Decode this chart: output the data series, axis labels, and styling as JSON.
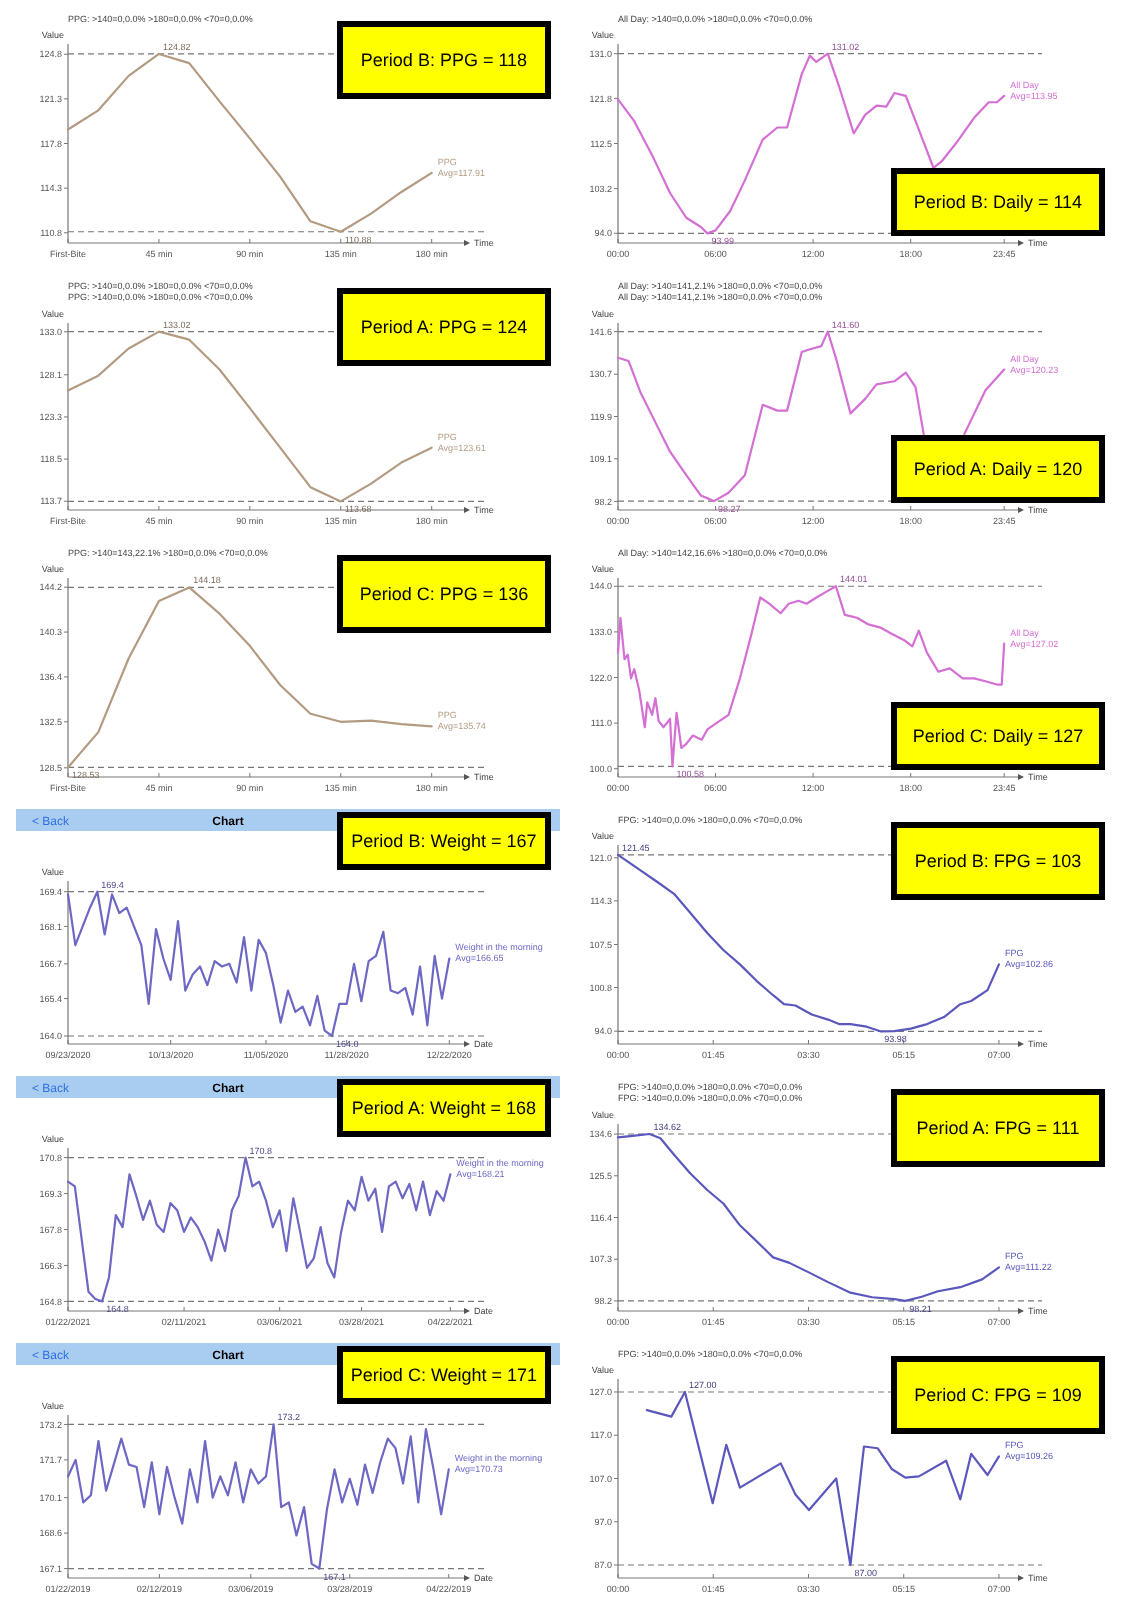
{
  "chart_data": [
    {
      "type": "line",
      "title": "PPG: >140=0,0.0%  >180=0,0.0%  <70=0,0.0%",
      "xlabel": "Time",
      "ylabel": "Value",
      "legend": "right",
      "x": [
        0,
        15,
        30,
        45,
        60,
        75,
        90,
        105,
        120,
        135,
        150,
        165,
        180
      ],
      "xlim": [
        0,
        196
      ],
      "xticks": [
        {
          "value": 0,
          "label": "First-Bite"
        },
        {
          "value": 45,
          "label": "45 min"
        },
        {
          "value": 90,
          "label": "90 min"
        },
        {
          "value": 135,
          "label": "135 min"
        },
        {
          "value": 180,
          "label": "180 min"
        }
      ],
      "ylim": [
        110.0,
        125.6
      ],
      "yticks": [
        110.8,
        114.3,
        117.8,
        121.3,
        124.8
      ],
      "series": [
        {
          "name": "PPG",
          "color": "#b39b82",
          "values": [
            118.9,
            120.4,
            123.1,
            124.82,
            124.1,
            121.1,
            118.2,
            115.2,
            111.7,
            110.88,
            112.3,
            114.0,
            115.5
          ]
        }
      ],
      "ref_lines": [
        {
          "axis": "y",
          "value": 124.82,
          "line_style": "dashed",
          "color": "#777777"
        },
        {
          "axis": "y",
          "value": 110.88,
          "line_style": "dashed",
          "color": "#777777"
        }
      ],
      "annotations": [
        "Period B:  PPG = 118",
        "Avg=117.91",
        {
          "text": "124.82",
          "x": 45,
          "y": 124.82
        },
        {
          "text": "110.88",
          "x": 135,
          "y": 110.88
        }
      ]
    },
    {
      "type": "line",
      "title": "All Day: >140=0,0.0%  >180=0,0.0%  <70=0,0.0%",
      "xlabel": "Time",
      "ylabel": "Value",
      "legend": "right",
      "x": [
        0,
        1.0,
        2.1,
        3.2,
        4.2,
        5.1,
        5.5,
        6.0,
        6.9,
        7.8,
        8.9,
        9.8,
        10.4,
        11.3,
        11.8,
        12.2,
        12.9,
        13.6,
        14.5,
        15.2,
        15.9,
        16.5,
        17.0,
        17.7,
        18.3,
        19.4,
        19.9,
        20.8,
        21.9,
        22.8,
        23.3,
        23.75
      ],
      "xlim": [
        0,
        24.6
      ],
      "xticks": [
        {
          "value": 0,
          "label": "00:00"
        },
        {
          "value": 6,
          "label": "06:00"
        },
        {
          "value": 12,
          "label": "12:00"
        },
        {
          "value": 18,
          "label": "18:00"
        },
        {
          "value": 23.75,
          "label": "23:45"
        }
      ],
      "ylim": [
        92.0,
        133.0
      ],
      "yticks": [
        {
          "value": 94,
          "label": "94.0"
        },
        103.2,
        112.5,
        121.8,
        {
          "value": 131,
          "label": "131.0"
        }
      ],
      "series": [
        {
          "name": "All Day",
          "color": "#d46fd4",
          "values": [
            121.6,
            117.1,
            110.1,
            102.3,
            97.2,
            95.3,
            93.99,
            94.6,
            98.6,
            104.9,
            113.3,
            115.8,
            115.8,
            126.8,
            130.6,
            129.3,
            131.02,
            124.2,
            114.6,
            118.4,
            120.3,
            120.1,
            122.9,
            122.3,
            117.1,
            107.5,
            108.8,
            112.6,
            117.8,
            121.0,
            121.0,
            122.3
          ]
        }
      ],
      "ref_lines": [
        {
          "axis": "y",
          "value": 131.02,
          "line_style": "dashed",
          "color": "#777777"
        },
        {
          "axis": "y",
          "value": 93.99,
          "line_style": "dashed",
          "color": "#777777"
        }
      ],
      "annotations": [
        "Period B:  Daily = 114",
        "Avg=113.95",
        {
          "text": "131.02",
          "x": 12.9,
          "y": 131.02
        },
        {
          "text": "93.99",
          "x": 5.5,
          "y": 93.99
        }
      ]
    },
    {
      "type": "line",
      "title": "PPG: >140=0,0.0%  >180=0,0.0%  <70=0,0.0%",
      "subtitle": "PPG: >140=0,0.0%  >180=0,0.0%  <70=0,0.0%",
      "xlabel": "Time",
      "ylabel": "Value",
      "legend": "right",
      "x": [
        0,
        15,
        30,
        45,
        60,
        75,
        90,
        105,
        120,
        135,
        150,
        165,
        180
      ],
      "xlim": [
        0,
        196
      ],
      "xticks": [
        {
          "value": 0,
          "label": "First-Bite"
        },
        {
          "value": 45,
          "label": "45 min"
        },
        {
          "value": 90,
          "label": "90 min"
        },
        {
          "value": 135,
          "label": "135 min"
        },
        {
          "value": 180,
          "label": "180 min"
        }
      ],
      "ylim": [
        112.7,
        134.0
      ],
      "yticks": [
        113.7,
        118.5,
        123.3,
        128.1,
        {
          "value": 133,
          "label": "133.0"
        }
      ],
      "series": [
        {
          "name": "PPG",
          "color": "#b39b82",
          "values": [
            126.3,
            128.0,
            131.1,
            133.02,
            132.1,
            128.7,
            124.3,
            119.8,
            115.3,
            113.68,
            115.7,
            118.1,
            119.8
          ]
        }
      ],
      "ref_lines": [
        {
          "axis": "y",
          "value": 133.02,
          "line_style": "dashed",
          "color": "#777777"
        },
        {
          "axis": "y",
          "value": 113.68,
          "line_style": "dashed",
          "color": "#777777"
        }
      ],
      "annotations": [
        "Period A:  PPG = 124",
        "Avg=123.61",
        {
          "text": "133.02",
          "x": 45,
          "y": 133.02
        },
        {
          "text": "113.68",
          "x": 135,
          "y": 113.68
        }
      ]
    },
    {
      "type": "line",
      "title": "All Day: >140=141,2.1%  >180=0,0.0%  <70=0,0.0%",
      "subtitle": "All Day: >140=141,2.1%  >180=0,0.0%  <70=0,0.0%",
      "xlabel": "Time",
      "ylabel": "Value",
      "legend": "right",
      "x": [
        0,
        0.65,
        1.4,
        2.3,
        3.2,
        4.2,
        5.1,
        5.9,
        6.8,
        7.8,
        8.9,
        9.8,
        10.4,
        11.3,
        11.8,
        12.5,
        12.9,
        13.4,
        14.3,
        15.2,
        15.9,
        17.0,
        17.7,
        18.3,
        18.8,
        20.0,
        21.3,
        22.6,
        23.75
      ],
      "xlim": [
        0,
        24.6
      ],
      "xticks": [
        {
          "value": 0,
          "label": "00:00"
        },
        {
          "value": 6,
          "label": "06:00"
        },
        {
          "value": 12,
          "label": "12:00"
        },
        {
          "value": 18,
          "label": "18:00"
        },
        {
          "value": 23.75,
          "label": "23:45"
        }
      ],
      "ylim": [
        96.0,
        143.8
      ],
      "yticks": [
        98.2,
        109.1,
        119.9,
        130.7,
        141.6
      ],
      "series": [
        {
          "name": "All Day",
          "color": "#d46fd4",
          "values": [
            134.9,
            134.1,
            125.9,
            118.4,
            110.9,
            104.9,
            99.7,
            98.27,
            100.4,
            104.9,
            122.9,
            121.4,
            121.4,
            136.4,
            137.1,
            137.9,
            141.6,
            134.9,
            120.7,
            124.4,
            128.1,
            128.9,
            131.1,
            127.4,
            115.4,
            null,
            115.4,
            126.6,
            131.9
          ]
        }
      ],
      "ref_lines": [
        {
          "axis": "y",
          "value": 141.6,
          "line_style": "dashed",
          "color": "#777777"
        },
        {
          "axis": "y",
          "value": 98.27,
          "line_style": "dashed",
          "color": "#777777"
        }
      ],
      "annotations": [
        "Period A:  Daily = 120",
        "Avg=120.23",
        {
          "text": "141.60",
          "x": 12.9,
          "y": 141.6
        },
        {
          "text": "98.27",
          "x": 5.9,
          "y": 98.27
        }
      ]
    },
    {
      "type": "line",
      "title": "PPG: >140=143,22.1%  >180=0,0.0%  <70=0,0.0%",
      "xlabel": "Time",
      "ylabel": "Value",
      "legend": "right",
      "x": [
        0,
        15,
        30,
        45,
        60,
        75,
        90,
        105,
        120,
        135,
        150,
        165,
        180
      ],
      "xlim": [
        0,
        196
      ],
      "xticks": [
        {
          "value": 0,
          "label": "First-Bite"
        },
        {
          "value": 45,
          "label": "45 min"
        },
        {
          "value": 90,
          "label": "90 min"
        },
        {
          "value": 135,
          "label": "135 min"
        },
        {
          "value": 180,
          "label": "180 min"
        }
      ],
      "ylim": [
        127.7,
        145.0
      ],
      "yticks": [
        128.5,
        132.5,
        136.4,
        140.3,
        144.2
      ],
      "series": [
        {
          "name": "PPG",
          "color": "#b39b82",
          "values": [
            128.53,
            131.6,
            138.0,
            143.0,
            144.18,
            141.9,
            139.1,
            135.7,
            133.2,
            132.5,
            132.6,
            132.3,
            132.1
          ]
        }
      ],
      "ref_lines": [
        {
          "axis": "y",
          "value": 144.18,
          "line_style": "dashed",
          "color": "#777777"
        },
        {
          "axis": "y",
          "value": 128.53,
          "line_style": "dashed",
          "color": "#777777"
        }
      ],
      "annotations": [
        "Period C:  PPG = 136",
        "Avg=135.74",
        {
          "text": "144.18",
          "x": 60,
          "y": 144.18
        },
        {
          "text": "128.53",
          "x": 0,
          "y": 128.53
        }
      ]
    },
    {
      "type": "line",
      "title": "All Day: >140=142,16.6%  >180=0,0.0%  <70=0,0.0%",
      "xlabel": "Time",
      "ylabel": "Value",
      "legend": "right",
      "x": [
        0,
        0.15,
        0.4,
        0.6,
        0.8,
        1.0,
        1.3,
        1.65,
        1.8,
        2.1,
        2.3,
        2.5,
        2.8,
        3.2,
        3.35,
        3.6,
        3.9,
        4.2,
        4.6,
        5.15,
        5.5,
        6.05,
        6.8,
        7.5,
        8.2,
        8.75,
        9.3,
        10.0,
        10.5,
        11.1,
        11.6,
        12.2,
        12.9,
        13.4,
        13.95,
        14.7,
        15.4,
        16.1,
        16.8,
        17.6,
        18.1,
        18.5,
        19.0,
        19.7,
        20.4,
        21.2,
        21.9,
        22.6,
        23.3,
        23.6,
        23.75
      ],
      "xlim": [
        0,
        24.6
      ],
      "xticks": [
        {
          "value": 0,
          "label": "00:00"
        },
        {
          "value": 6,
          "label": "06:00"
        },
        {
          "value": 12,
          "label": "12:00"
        },
        {
          "value": 18,
          "label": "18:00"
        },
        {
          "value": 23.75,
          "label": "23:45"
        }
      ],
      "ylim": [
        98.0,
        146.0
      ],
      "yticks": [
        {
          "value": 100,
          "label": "100.0"
        },
        {
          "value": 111,
          "label": "111.0"
        },
        {
          "value": 122,
          "label": "122.0"
        },
        {
          "value": 133,
          "label": "133.0"
        },
        {
          "value": 144,
          "label": "144.0"
        }
      ],
      "series": [
        {
          "name": "All Day",
          "color": "#d46fd4",
          "values": [
            128.0,
            136.4,
            126.4,
            127.5,
            121.8,
            124.0,
            119.0,
            110.0,
            116.0,
            113.0,
            117.0,
            111.5,
            110.0,
            112.0,
            100.58,
            113.5,
            105.0,
            106.0,
            108.0,
            107.0,
            109.5,
            111.0,
            113.0,
            121.8,
            132.4,
            141.3,
            139.8,
            137.5,
            139.8,
            140.5,
            139.8,
            141.3,
            142.9,
            144.01,
            137.1,
            136.4,
            134.8,
            134.1,
            132.6,
            131.0,
            129.5,
            133.3,
            128.0,
            123.4,
            124.2,
            121.8,
            121.8,
            121.1,
            120.3,
            120.3,
            130.2
          ]
        }
      ],
      "ref_lines": [
        {
          "axis": "y",
          "value": 144.01,
          "line_style": "dashed",
          "color": "#777777"
        },
        {
          "axis": "y",
          "value": 100.58,
          "line_style": "dashed",
          "color": "#777777"
        }
      ],
      "annotations": [
        "Period C:  Daily = 127",
        "Avg=127.02",
        {
          "text": "144.01",
          "x": 13.4,
          "y": 144.01
        },
        {
          "text": "100.58",
          "x": 3.35,
          "y": 100.58
        }
      ]
    },
    {
      "type": "line",
      "title": "Chart",
      "xlabel": "Date",
      "ylabel": "Value",
      "legend": "right",
      "categories": [
        "09/23/2020",
        null,
        null,
        null,
        null,
        null,
        null,
        null,
        null,
        null,
        null,
        null,
        null,
        null,
        "10/13/2020",
        null,
        null,
        null,
        null,
        null,
        null,
        null,
        null,
        null,
        null,
        null,
        null,
        "11/05/2020",
        null,
        null,
        null,
        null,
        null,
        null,
        null,
        null,
        null,
        null,
        "11/28/2020",
        null,
        null,
        null,
        null,
        null,
        null,
        null,
        null,
        null,
        null,
        null,
        null,
        null,
        "12/22/2020"
      ],
      "ylim": [
        163.7,
        169.8
      ],
      "yticks": [
        {
          "value": 164,
          "label": "164.0"
        },
        165.4,
        166.7,
        168.1,
        169.4
      ],
      "series": [
        {
          "name": "Weight in the morning",
          "color": "#6d68c4",
          "values": [
            169.3,
            167.4,
            168.1,
            168.8,
            169.4,
            167.8,
            169.3,
            168.6,
            168.8,
            168.1,
            167.4,
            165.2,
            168.0,
            166.9,
            166.1,
            168.3,
            165.7,
            166.3,
            166.6,
            165.9,
            166.8,
            166.6,
            166.7,
            166.0,
            167.7,
            165.7,
            167.6,
            167.1,
            165.9,
            164.5,
            165.7,
            164.9,
            165.1,
            164.4,
            165.5,
            164.2,
            164.0,
            165.2,
            165.2,
            166.7,
            165.3,
            166.8,
            167.0,
            167.9,
            165.7,
            165.6,
            165.8,
            164.8,
            166.6,
            164.4,
            167.0,
            165.4,
            166.9
          ]
        }
      ],
      "ref_lines": [
        {
          "axis": "y",
          "value": 169.4,
          "line_style": "dashed",
          "color": "#777777"
        },
        {
          "axis": "y",
          "value": 164.0,
          "line_style": "dashed",
          "color": "#777777"
        }
      ],
      "annotations": [
        "Period B:  Weight = 167",
        "Avg=166.65",
        "< Back",
        {
          "text": "169.4",
          "y": 169.4
        },
        {
          "text": "164.0",
          "y": 164.0
        }
      ]
    },
    {
      "type": "line",
      "title": "FPG: >140=0,0.0%  >180=0,0.0%  <70=0,0.0%",
      "xlabel": "Time",
      "ylabel": "Value",
      "legend": "right",
      "x": [
        0,
        0.42,
        0.73,
        1.03,
        1.33,
        1.64,
        1.94,
        2.24,
        2.55,
        2.85,
        3.05,
        3.26,
        3.56,
        3.86,
        4.06,
        4.27,
        4.57,
        4.82,
        5.08,
        5.38,
        5.68,
        5.99,
        6.29,
        6.49,
        6.79,
        7.0
      ],
      "xlim": [
        0,
        7.35
      ],
      "xticks": [
        {
          "value": 0,
          "label": "00:00"
        },
        {
          "value": 1.75,
          "label": "01:45"
        },
        {
          "value": 3.5,
          "label": "03:30"
        },
        {
          "value": 5.25,
          "label": "05:15"
        },
        {
          "value": 7,
          "label": "07:00"
        }
      ],
      "ylim": [
        92.0,
        123.0
      ],
      "yticks": [
        {
          "value": 94,
          "label": "94.0"
        },
        100.8,
        107.5,
        114.3,
        {
          "value": 121,
          "label": "121.0"
        }
      ],
      "series": [
        {
          "name": "FPG",
          "color": "#5b57bd",
          "values": [
            121.45,
            119.0,
            117.2,
            115.4,
            112.4,
            109.3,
            106.6,
            104.4,
            101.8,
            99.6,
            98.2,
            98.0,
            96.6,
            95.8,
            95.1,
            95.1,
            94.7,
            93.98,
            94.0,
            94.4,
            95.1,
            96.2,
            98.2,
            98.7,
            100.4,
            104.4
          ]
        }
      ],
      "ref_lines": [
        {
          "axis": "y",
          "value": 121.45,
          "line_style": "dashed",
          "color": "#777777"
        },
        {
          "axis": "y",
          "value": 93.98,
          "line_style": "dashed",
          "color": "#777777"
        }
      ],
      "annotations": [
        "Period B:  FPG = 103",
        "Avg=102.86",
        {
          "text": "121.45",
          "x": 0,
          "y": 121.45
        },
        {
          "text": "93.98",
          "x": 4.82,
          "y": 93.98
        }
      ]
    },
    {
      "type": "line",
      "title": "Chart",
      "xlabel": "Date",
      "ylabel": "Value",
      "legend": "right",
      "categories": [
        "01/22/2021",
        null,
        null,
        null,
        null,
        null,
        null,
        null,
        null,
        null,
        null,
        null,
        null,
        null,
        null,
        null,
        null,
        "02/11/2021",
        null,
        null,
        null,
        null,
        null,
        null,
        null,
        null,
        null,
        null,
        null,
        null,
        null,
        "03/06/2021",
        null,
        null,
        null,
        null,
        null,
        null,
        null,
        null,
        null,
        null,
        null,
        "03/28/2021",
        null,
        null,
        null,
        null,
        null,
        null,
        null,
        null,
        null,
        null,
        null,
        null,
        "04/22/2021"
      ],
      "ylim": [
        164.4,
        171.2
      ],
      "yticks": [
        164.8,
        166.3,
        167.8,
        169.3,
        170.8
      ],
      "series": [
        {
          "name": "Weight in the morning",
          "color": "#6d68c4",
          "values": [
            169.8,
            169.6,
            167.4,
            165.2,
            164.9,
            164.8,
            165.8,
            168.4,
            167.9,
            170.1,
            169.2,
            168.2,
            169.0,
            168.0,
            167.7,
            168.9,
            168.6,
            167.7,
            168.3,
            167.9,
            167.3,
            166.5,
            167.8,
            166.9,
            168.6,
            169.2,
            170.8,
            169.6,
            169.8,
            169.0,
            167.9,
            168.6,
            166.9,
            169.1,
            167.7,
            166.2,
            166.6,
            167.9,
            166.4,
            165.8,
            167.7,
            169.0,
            168.6,
            170.0,
            169.0,
            169.5,
            167.7,
            169.6,
            169.8,
            169.1,
            169.7,
            168.6,
            169.8,
            168.4,
            169.4,
            169.0,
            170.1
          ]
        }
      ],
      "ref_lines": [
        {
          "axis": "y",
          "value": 170.8,
          "line_style": "dashed",
          "color": "#777777"
        },
        {
          "axis": "y",
          "value": 164.8,
          "line_style": "dashed",
          "color": "#777777"
        }
      ],
      "annotations": [
        "Period A:  Weight = 168",
        "Avg=168.21",
        "< Back",
        {
          "text": "170.8",
          "y": 170.8
        },
        {
          "text": "164.8",
          "y": 164.8
        }
      ]
    },
    {
      "type": "line",
      "title": "FPG: >140=0,0.0%  >180=0,0.0%  <70=0,0.0%",
      "subtitle": "FPG: >140=0,0.0%  >180=0,0.0%  <70=0,0.0%",
      "xlabel": "Time",
      "ylabel": "Value",
      "legend": "right",
      "x": [
        0,
        0.27,
        0.58,
        0.78,
        1.03,
        1.33,
        1.64,
        1.94,
        2.24,
        2.55,
        2.85,
        3.15,
        3.46,
        3.86,
        4.27,
        4.67,
        5.08,
        5.28,
        5.58,
        5.88,
        6.29,
        6.69,
        7.0
      ],
      "xlim": [
        0,
        7.35
      ],
      "xticks": [
        {
          "value": 0,
          "label": "00:00"
        },
        {
          "value": 1.75,
          "label": "01:45"
        },
        {
          "value": 3.5,
          "label": "03:30"
        },
        {
          "value": 5.25,
          "label": "05:15"
        },
        {
          "value": 7,
          "label": "07:00"
        }
      ],
      "ylim": [
        96.0,
        136.8
      ],
      "yticks": [
        98.2,
        107.3,
        116.4,
        125.5,
        134.6
      ],
      "series": [
        {
          "name": "FPG",
          "color": "#5b57bd",
          "values": [
            133.9,
            134.2,
            134.62,
            133.7,
            130.1,
            126.0,
            122.4,
            119.4,
            114.7,
            111.2,
            107.7,
            106.5,
            104.7,
            102.3,
            100.0,
            99.0,
            98.6,
            98.21,
            99.1,
            100.3,
            101.2,
            102.9,
            105.5
          ]
        }
      ],
      "ref_lines": [
        {
          "axis": "y",
          "value": 134.62,
          "line_style": "dashed",
          "color": "#777777"
        },
        {
          "axis": "y",
          "value": 98.21,
          "line_style": "dashed",
          "color": "#777777"
        }
      ],
      "annotations": [
        "Period A:  FPG = 111",
        "Avg=111.22",
        {
          "text": "134.62",
          "x": 0.58,
          "y": 134.62
        },
        {
          "text": "98.21",
          "x": 5.28,
          "y": 98.21
        }
      ]
    },
    {
      "type": "line",
      "title": "Chart",
      "xlabel": "Date",
      "ylabel": "Value",
      "legend": "right",
      "categories": [
        "01/22/2019",
        null,
        null,
        null,
        null,
        null,
        null,
        null,
        null,
        null,
        null,
        null,
        "02/12/2019",
        null,
        null,
        null,
        null,
        null,
        null,
        null,
        null,
        null,
        null,
        null,
        "03/06/2019",
        null,
        null,
        null,
        null,
        null,
        null,
        null,
        null,
        null,
        null,
        null,
        null,
        "03/28/2019",
        null,
        null,
        null,
        null,
        null,
        null,
        null,
        null,
        null,
        null,
        null,
        null,
        "04/22/2019"
      ],
      "ylim": [
        166.7,
        173.6
      ],
      "yticks": [
        167.1,
        168.6,
        170.1,
        171.7,
        173.2
      ],
      "series": [
        {
          "name": "Weight in the morning",
          "color": "#6d68c4",
          "values": [
            171.0,
            171.7,
            169.9,
            170.2,
            172.5,
            170.4,
            171.5,
            172.6,
            171.5,
            171.4,
            169.7,
            171.6,
            169.4,
            171.4,
            170.1,
            169.0,
            171.3,
            169.9,
            172.5,
            170.1,
            171.0,
            170.2,
            171.6,
            169.9,
            171.3,
            170.7,
            171.0,
            173.2,
            169.7,
            169.9,
            168.5,
            169.7,
            167.3,
            167.1,
            169.6,
            171.3,
            169.9,
            170.9,
            169.8,
            171.5,
            170.3,
            171.6,
            172.6,
            172.2,
            170.7,
            172.7,
            169.9,
            173.0,
            171.3,
            169.4,
            171.3
          ]
        }
      ],
      "ref_lines": [
        {
          "axis": "y",
          "value": 173.2,
          "line_style": "dashed",
          "color": "#777777"
        },
        {
          "axis": "y",
          "value": 167.1,
          "line_style": "dashed",
          "color": "#777777"
        }
      ],
      "annotations": [
        "Period C:  Weight = 171",
        "Avg=170.73",
        "< Back",
        {
          "text": "173.2",
          "y": 173.2
        },
        {
          "text": "167.1",
          "y": 167.1
        }
      ]
    },
    {
      "type": "line",
      "title": "FPG: >140=0,0.0%  >180=0,0.0%  <70=0,0.0%",
      "xlabel": "Time",
      "ylabel": "Value",
      "legend": "right",
      "x": [
        0.53,
        0.98,
        1.23,
        1.74,
        1.99,
        2.24,
        2.99,
        3.26,
        3.51,
        4.01,
        4.27,
        4.52,
        4.77,
        5.03,
        5.28,
        5.53,
        6.03,
        6.29,
        6.49,
        6.79,
        7.0
      ],
      "xlim": [
        0,
        7.35
      ],
      "xticks": [
        {
          "value": 0,
          "label": "00:00"
        },
        {
          "value": 1.75,
          "label": "01:45"
        },
        {
          "value": 3.5,
          "label": "03:30"
        },
        {
          "value": 5.25,
          "label": "05:15"
        },
        {
          "value": 7,
          "label": "07:00"
        }
      ],
      "ylim": [
        84.0,
        130.0
      ],
      "yticks": [
        {
          "value": 87,
          "label": "87.0"
        },
        {
          "value": 97,
          "label": "97.0"
        },
        {
          "value": 107,
          "label": "107.0"
        },
        {
          "value": 117,
          "label": "117.0"
        },
        {
          "value": 127,
          "label": "127.0"
        }
      ],
      "series": [
        {
          "name": "FPG",
          "color": "#5b57bd",
          "values": [
            122.8,
            121.3,
            127.0,
            101.3,
            114.8,
            104.9,
            110.5,
            103.3,
            99.7,
            107.0,
            87.0,
            114.4,
            114.0,
            109.2,
            107.2,
            107.5,
            111.1,
            102.2,
            112.7,
            107.8,
            112.1
          ]
        }
      ],
      "ref_lines": [
        {
          "axis": "y",
          "value": 127.0,
          "line_style": "dashed",
          "color": "#777777"
        },
        {
          "axis": "y",
          "value": 87.0,
          "line_style": "dashed",
          "color": "#777777"
        }
      ],
      "annotations": [
        "Period C:  FPG = 109",
        "Avg=109.26",
        {
          "text": "127.00",
          "x": 1.23,
          "y": 127.0
        },
        {
          "text": "87.00",
          "x": 4.27,
          "y": 87.0
        }
      ]
    }
  ]
}
